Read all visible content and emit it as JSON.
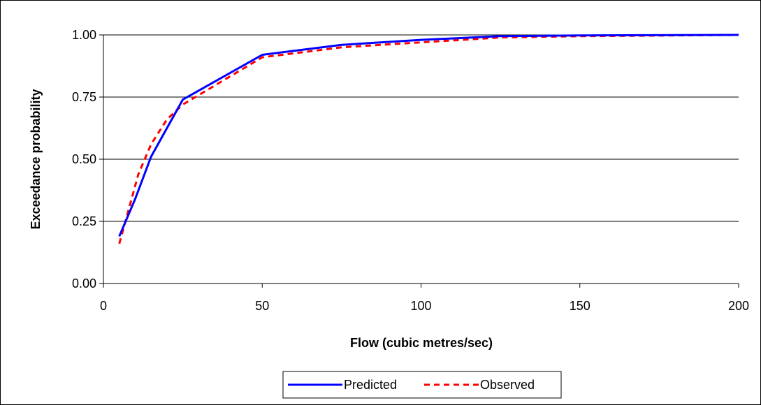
{
  "chart_data": {
    "type": "line",
    "title": "",
    "xlabel": "Flow (cubic metres/sec)",
    "ylabel": "Exceedance probability",
    "xlim": [
      0,
      200
    ],
    "ylim": [
      0,
      1
    ],
    "x_ticks": [
      0,
      50,
      100,
      150,
      200
    ],
    "x_tick_labels": [
      "0",
      "50",
      "100",
      "150",
      "200"
    ],
    "y_ticks": [
      0,
      0.25,
      0.5,
      0.75,
      1.0
    ],
    "y_tick_labels": [
      "0.00",
      "0.25",
      "0.50",
      "0.75",
      "1.00"
    ],
    "grid": "horizontal",
    "legend_position": "bottom",
    "series": [
      {
        "name": "Predicted",
        "color": "#0000FF",
        "style": "solid",
        "points": [
          [
            5,
            0.19
          ],
          [
            10,
            0.34
          ],
          [
            15,
            0.51
          ],
          [
            25,
            0.74
          ],
          [
            50,
            0.92
          ],
          [
            75,
            0.96
          ],
          [
            100,
            0.98
          ],
          [
            125,
            0.995
          ],
          [
            150,
            0.998
          ],
          [
            200,
            1.0
          ]
        ]
      },
      {
        "name": "Observed",
        "color": "#FF0000",
        "style": "dashed",
        "points": [
          [
            5,
            0.16
          ],
          [
            8,
            0.3
          ],
          [
            11,
            0.44
          ],
          [
            15,
            0.56
          ],
          [
            20,
            0.66
          ],
          [
            25,
            0.72
          ],
          [
            50,
            0.91
          ],
          [
            75,
            0.95
          ],
          [
            100,
            0.97
          ],
          [
            125,
            0.99
          ],
          [
            150,
            0.995
          ],
          [
            200,
            1.0
          ]
        ]
      }
    ]
  }
}
